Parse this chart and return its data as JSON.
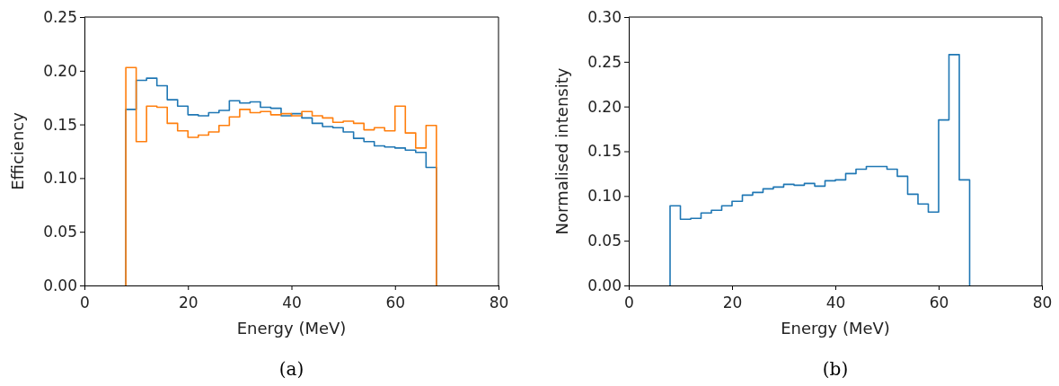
{
  "chart_data": [
    {
      "type": "histogram",
      "xlabel": "Energy (MeV)",
      "ylabel": "Efficiency",
      "annotations": [
        "(a)"
      ],
      "bins": [
        8,
        10,
        12,
        14,
        16,
        18,
        20,
        22,
        24,
        26,
        28,
        30,
        32,
        34,
        36,
        38,
        40,
        42,
        44,
        46,
        48,
        50,
        52,
        54,
        56,
        58,
        60,
        62,
        64,
        66,
        68
      ],
      "series": [
        {
          "color": "#1f77b4",
          "values": [
            0.164,
            0.191,
            0.193,
            0.186,
            0.173,
            0.167,
            0.159,
            0.158,
            0.161,
            0.163,
            0.172,
            0.17,
            0.171,
            0.166,
            0.165,
            0.158,
            0.16,
            0.156,
            0.151,
            0.148,
            0.147,
            0.143,
            0.137,
            0.134,
            0.13,
            0.129,
            0.128,
            0.126,
            0.124,
            0.11
          ]
        },
        {
          "color": "#ff7f0e",
          "values": [
            0.203,
            0.134,
            0.167,
            0.166,
            0.151,
            0.144,
            0.138,
            0.14,
            0.143,
            0.149,
            0.157,
            0.164,
            0.161,
            0.162,
            0.159,
            0.16,
            0.158,
            0.162,
            0.158,
            0.156,
            0.152,
            0.153,
            0.151,
            0.145,
            0.147,
            0.144,
            0.167,
            0.142,
            0.128,
            0.149
          ]
        }
      ],
      "xlim": [
        0,
        80
      ],
      "xticks": [
        0,
        20,
        40,
        60,
        80
      ],
      "ylim": [
        0,
        0.25
      ],
      "yticks": [
        {
          "value": 0,
          "label": "0.00"
        },
        {
          "value": 0.05,
          "label": "0.05"
        },
        {
          "value": 0.1,
          "label": "0.10"
        },
        {
          "value": 0.15,
          "label": "0.15"
        },
        {
          "value": 0.2,
          "label": "0.20"
        },
        {
          "value": 0.25,
          "label": "0.25"
        }
      ]
    },
    {
      "type": "histogram",
      "xlabel": "Energy (MeV)",
      "ylabel": "Normalised intensity",
      "annotations": [
        "(b)"
      ],
      "bins": [
        8,
        10,
        12,
        14,
        16,
        18,
        20,
        22,
        24,
        26,
        28,
        30,
        32,
        34,
        36,
        38,
        40,
        42,
        44,
        46,
        48,
        50,
        52,
        54,
        56,
        58,
        60,
        62,
        64,
        66
      ],
      "series": [
        {
          "color": "#1f77b4",
          "values": [
            0.089,
            0.074,
            0.075,
            0.081,
            0.084,
            0.089,
            0.094,
            0.101,
            0.104,
            0.108,
            0.11,
            0.113,
            0.112,
            0.114,
            0.111,
            0.117,
            0.118,
            0.125,
            0.13,
            0.133,
            0.133,
            0.13,
            0.122,
            0.102,
            0.091,
            0.082,
            0.185,
            0.258,
            0.118
          ]
        }
      ],
      "xlim": [
        0,
        80
      ],
      "xticks": [
        0,
        20,
        40,
        60,
        80
      ],
      "ylim": [
        0,
        0.3
      ],
      "yticks": [
        {
          "value": 0,
          "label": "0.00"
        },
        {
          "value": 0.05,
          "label": "0.05"
        },
        {
          "value": 0.1,
          "label": "0.10"
        },
        {
          "value": 0.15,
          "label": "0.15"
        },
        {
          "value": 0.2,
          "label": "0.20"
        },
        {
          "value": 0.25,
          "label": "0.25"
        },
        {
          "value": 0.3,
          "label": "0.30"
        }
      ]
    }
  ]
}
